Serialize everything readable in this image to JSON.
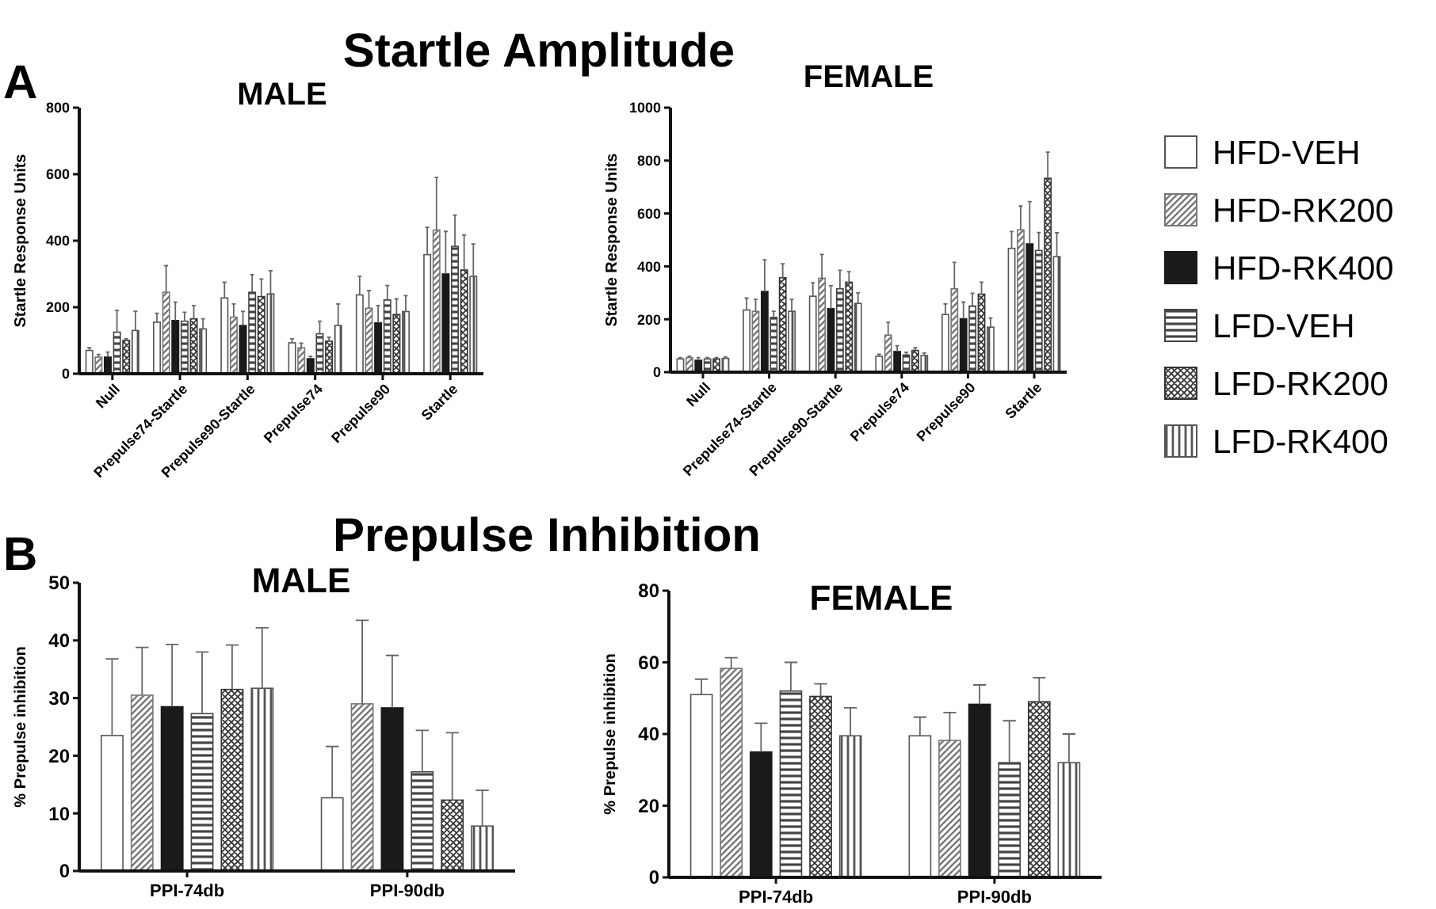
{
  "chart_data": [
    {
      "type": "bar",
      "title": "MALE",
      "annotations": [
        "A",
        "Startle Amplitude"
      ],
      "ylabel": "Startle Response Units",
      "categories": [
        "Null",
        "Prepulse74-Startle",
        "Prepulse90-Startle",
        "Prepulse74",
        "Prepulse90",
        "Startle"
      ],
      "ylim": [
        0,
        800
      ],
      "yticks": [
        0,
        200,
        400,
        600,
        800
      ],
      "legend": "right",
      "series": [
        {
          "name": "HFD-VEH",
          "color": "#ffffff",
          "values": [
            70,
            155,
            228,
            93,
            237,
            358
          ],
          "errors": [
            [
              70,
              78
            ],
            [
              155,
              182
            ],
            [
              228,
              275
            ],
            [
              93,
              105
            ],
            [
              237,
              293
            ],
            [
              358,
              440
            ]
          ]
        },
        {
          "name": "HFD-RK200",
          "color": "#777777",
          "values": [
            50,
            245,
            170,
            78,
            197,
            432
          ],
          "errors": [
            [
              50,
              58
            ],
            [
              245,
              325
            ],
            [
              170,
              210
            ],
            [
              78,
              92
            ],
            [
              197,
              250
            ],
            [
              432,
              590
            ]
          ]
        },
        {
          "name": "HFD-RK400",
          "color": "#1a1a1a",
          "values": [
            50,
            160,
            145,
            45,
            153,
            300
          ],
          "errors": [
            [
              50,
              65
            ],
            [
              160,
              215
            ],
            [
              145,
              187
            ],
            [
              45,
              52
            ],
            [
              153,
              205
            ],
            [
              300,
              428
            ]
          ]
        },
        {
          "name": "LFD-VEH",
          "color": "#444444",
          "values": [
            125,
            158,
            245,
            120,
            222,
            383
          ],
          "errors": [
            [
              125,
              190
            ],
            [
              158,
              185
            ],
            [
              245,
              298
            ],
            [
              120,
              158
            ],
            [
              222,
              265
            ],
            [
              383,
              477
            ]
          ]
        },
        {
          "name": "LFD-RK200",
          "color": "#333333",
          "values": [
            100,
            165,
            232,
            98,
            178,
            312
          ],
          "errors": [
            [
              100,
              105
            ],
            [
              165,
              205
            ],
            [
              232,
              285
            ],
            [
              98,
              110
            ],
            [
              178,
              225
            ],
            [
              312,
              417
            ]
          ]
        },
        {
          "name": "LFD-RK400",
          "color": "#555555",
          "values": [
            130,
            135,
            240,
            145,
            187,
            293
          ],
          "errors": [
            [
              130,
              188
            ],
            [
              135,
              165
            ],
            [
              240,
              310
            ],
            [
              145,
              210
            ],
            [
              187,
              235
            ],
            [
              293,
              390
            ]
          ]
        }
      ]
    },
    {
      "type": "bar",
      "title": "FEMALE",
      "ylabel": "Startle Response Units",
      "categories": [
        "Null",
        "Prepulse74-Startle",
        "Prepulse90-Startle",
        "Prepulse74",
        "Prepulse90",
        "Startle"
      ],
      "ylim": [
        0,
        1000
      ],
      "yticks": [
        0,
        200,
        400,
        600,
        800,
        1000
      ],
      "series": [
        {
          "color": "#ffffff",
          "values": [
            50,
            235,
            287,
            60,
            218,
            468
          ],
          "errors": [
            [
              50,
              55
            ],
            [
              235,
              280
            ],
            [
              287,
              338
            ],
            [
              60,
              68
            ],
            [
              218,
              258
            ],
            [
              468,
              532
            ]
          ]
        },
        {
          "color": "#777777",
          "values": [
            55,
            230,
            355,
            140,
            315,
            538
          ],
          "errors": [
            [
              55,
              60
            ],
            [
              230,
              275
            ],
            [
              355,
              445
            ],
            [
              140,
              188
            ],
            [
              315,
              415
            ],
            [
              538,
              628
            ]
          ]
        },
        {
          "color": "#1a1a1a",
          "values": [
            45,
            305,
            240,
            78,
            202,
            485
          ],
          "errors": [
            [
              45,
              55
            ],
            [
              305,
              425
            ],
            [
              240,
              327
            ],
            [
              78,
              100
            ],
            [
              202,
              265
            ],
            [
              485,
              645
            ]
          ]
        },
        {
          "color": "#444444",
          "values": [
            50,
            207,
            315,
            65,
            250,
            460
          ],
          "errors": [
            [
              50,
              55
            ],
            [
              207,
              230
            ],
            [
              315,
              385
            ],
            [
              65,
              75
            ],
            [
              250,
              298
            ],
            [
              460,
              528
            ]
          ]
        },
        {
          "color": "#333333",
          "values": [
            50,
            357,
            340,
            82,
            295,
            733
          ],
          "errors": [
            [
              50,
              55
            ],
            [
              357,
              410
            ],
            [
              340,
              380
            ],
            [
              82,
              92
            ],
            [
              295,
              340
            ],
            [
              733,
              832
            ]
          ]
        },
        {
          "color": "#555555",
          "values": [
            52,
            230,
            260,
            63,
            170,
            437
          ],
          "errors": [
            [
              52,
              57
            ],
            [
              230,
              275
            ],
            [
              260,
              300
            ],
            [
              63,
              72
            ],
            [
              170,
              205
            ],
            [
              437,
              527
            ]
          ]
        }
      ]
    },
    {
      "type": "bar",
      "title": "MALE",
      "annotations": [
        "B",
        "Prepulse Inhibition"
      ],
      "ylabel": "% Prepulse inhibition",
      "categories": [
        "PPI-74db",
        "PPI-90db"
      ],
      "ylim": [
        0,
        50
      ],
      "yticks": [
        0,
        10,
        20,
        30,
        40,
        50
      ],
      "series": [
        {
          "color": "#ffffff",
          "values": [
            23.5,
            12.7
          ],
          "errors": [
            [
              23.5,
              36.8
            ],
            [
              12.7,
              21.6
            ]
          ]
        },
        {
          "color": "#777777",
          "values": [
            30.5,
            29
          ],
          "errors": [
            [
              30.5,
              38.8
            ],
            [
              29,
              43.5
            ]
          ]
        },
        {
          "color": "#1a1a1a",
          "values": [
            28.5,
            28.3
          ],
          "errors": [
            [
              28.5,
              39.3
            ],
            [
              28.3,
              37.4
            ]
          ]
        },
        {
          "color": "#444444",
          "values": [
            27.3,
            17.2
          ],
          "errors": [
            [
              27.3,
              38
            ],
            [
              17.2,
              24.4
            ]
          ]
        },
        {
          "color": "#333333",
          "values": [
            31.5,
            12.3
          ],
          "errors": [
            [
              31.5,
              39.2
            ],
            [
              12.3,
              24
            ]
          ]
        },
        {
          "color": "#555555",
          "values": [
            31.7,
            7.8
          ],
          "errors": [
            [
              31.7,
              42.2
            ],
            [
              7.8,
              14
            ]
          ]
        }
      ]
    },
    {
      "type": "bar",
      "title": "FEMALE",
      "ylabel": "% Prepulse inhibition",
      "categories": [
        "PPI-74db",
        "PPI-90db"
      ],
      "ylim": [
        0,
        80
      ],
      "yticks": [
        0,
        20,
        40,
        60,
        80
      ],
      "series": [
        {
          "color": "#ffffff",
          "values": [
            51,
            39.5
          ],
          "errors": [
            [
              51,
              55.3
            ],
            [
              39.5,
              44.7
            ]
          ]
        },
        {
          "color": "#777777",
          "values": [
            58.3,
            38.2
          ],
          "errors": [
            [
              58.3,
              61.3
            ],
            [
              38.2,
              46
            ]
          ]
        },
        {
          "color": "#1a1a1a",
          "values": [
            35,
            48.3
          ],
          "errors": [
            [
              35,
              43
            ],
            [
              48.3,
              53.7
            ]
          ]
        },
        {
          "color": "#444444",
          "values": [
            52,
            32
          ],
          "errors": [
            [
              52,
              60
            ],
            [
              32,
              43.7
            ]
          ]
        },
        {
          "color": "#333333",
          "values": [
            50.5,
            49
          ],
          "errors": [
            [
              50.5,
              54
            ],
            [
              49,
              55.7
            ]
          ]
        },
        {
          "color": "#555555",
          "values": [
            39.5,
            32
          ],
          "errors": [
            [
              39.5,
              47.3
            ],
            [
              32,
              40
            ]
          ]
        }
      ]
    }
  ]
}
